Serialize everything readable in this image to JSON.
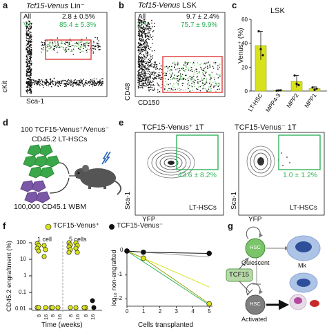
{
  "colors": {
    "green": "#2fb35a",
    "lime": "#d8e21c",
    "red": "#e23a3a",
    "black": "#111111",
    "gray": "#8a8a8a",
    "purple": "#7b57a8",
    "hsc_green": "#7cc46a",
    "hsc_gray": "#7e7e7e",
    "cell_blue": "#4a6fb3"
  },
  "panels": {
    "a": {
      "letter": "a",
      "title_italic": "Tcf15-Venus",
      "title_rest": " Lin⁻",
      "all_label": "All",
      "all_value": "2.8 ± 0.5%",
      "v_label": "V⁺",
      "v_value": "85.4 ± 5.3%",
      "xlabel": "Sca-1",
      "ylabel": "cKit"
    },
    "b": {
      "letter": "b",
      "title_italic": "Tcf15-Venus",
      "title_rest": " LSK",
      "all_label": "All",
      "all_value": "9.7 ± 2.4%",
      "v_label": "V⁺",
      "v_value": "75.7 ± 9.9%",
      "xlabel": "CD150",
      "ylabel": "CD48"
    },
    "c": {
      "letter": "c",
      "title": "LSK",
      "ylabel": "Venus⁺ (%)",
      "chart_data": {
        "type": "bar",
        "categories": [
          "LT-HSC",
          "MPP4-3",
          "MPP2",
          "MPP1"
        ],
        "values": [
          38,
          0.5,
          8,
          2
        ],
        "errors": [
          12,
          0.5,
          5,
          1.5
        ],
        "points": [
          [
            50,
            35,
            30
          ],
          [
            0.3,
            0.5,
            0.6
          ],
          [
            13,
            6,
            5
          ],
          [
            3,
            1,
            2
          ]
        ],
        "ylim": [
          0,
          60
        ],
        "yticks": [
          0,
          20,
          40,
          60
        ]
      }
    },
    "d": {
      "letter": "d",
      "line1": "100 TCF15-Venus⁺/Venus⁻",
      "line2": "CD45.2 LT-HSCs",
      "line3": "100,000 CD45.1 WBM"
    },
    "e": {
      "letter": "e",
      "left_title": "TCF15-Venus⁺ 1T",
      "right_title": "TCF15-Venus⁻ 1T",
      "left_value": "43.6 ± 8.2%",
      "right_value": "1.0 ± 1.2%",
      "gate_label": "LT-HSCs",
      "xlabel": "YFP",
      "ylabel": "Sca-1"
    },
    "f": {
      "letter": "f",
      "legend_pos": "TCF15-Venus⁺",
      "legend_neg": "TCF15-Venus⁻",
      "ylabel": "CD45.2 engraftment (%)",
      "xlabel": "Time (weeks)",
      "group1": "1 cell",
      "group2": "5 cells",
      "yticks": [
        "100",
        "10",
        "1",
        "0.1",
        "0.01"
      ],
      "xticks": [
        "8",
        "16",
        "8",
        "16",
        "8",
        "16",
        "8",
        "16"
      ],
      "right_ylabel": "log₁₀ non-engrafted",
      "right_xlabel": "Cells transplanted",
      "right_yticks": [
        "0",
        "-1",
        "-2"
      ],
      "right_xticks": [
        "0",
        "1",
        "2",
        "3",
        "4",
        "5"
      ],
      "chart_data": {
        "type": "line",
        "x": [
          0,
          1,
          5
        ],
        "series": [
          {
            "name": "TCF15-Venus⁺",
            "values": [
              0,
              -0.3,
              -2.2
            ]
          },
          {
            "name": "TCF15-Venus⁻",
            "values": [
              0,
              -0.05,
              -0.1
            ]
          }
        ],
        "ylim": [
          -2.3,
          0.1
        ]
      }
    },
    "g": {
      "letter": "g",
      "tcf15": "TCF15",
      "hsc": "HSC",
      "quiescent": "Quiescent",
      "activated": "Activated",
      "mk": "Mk"
    }
  }
}
